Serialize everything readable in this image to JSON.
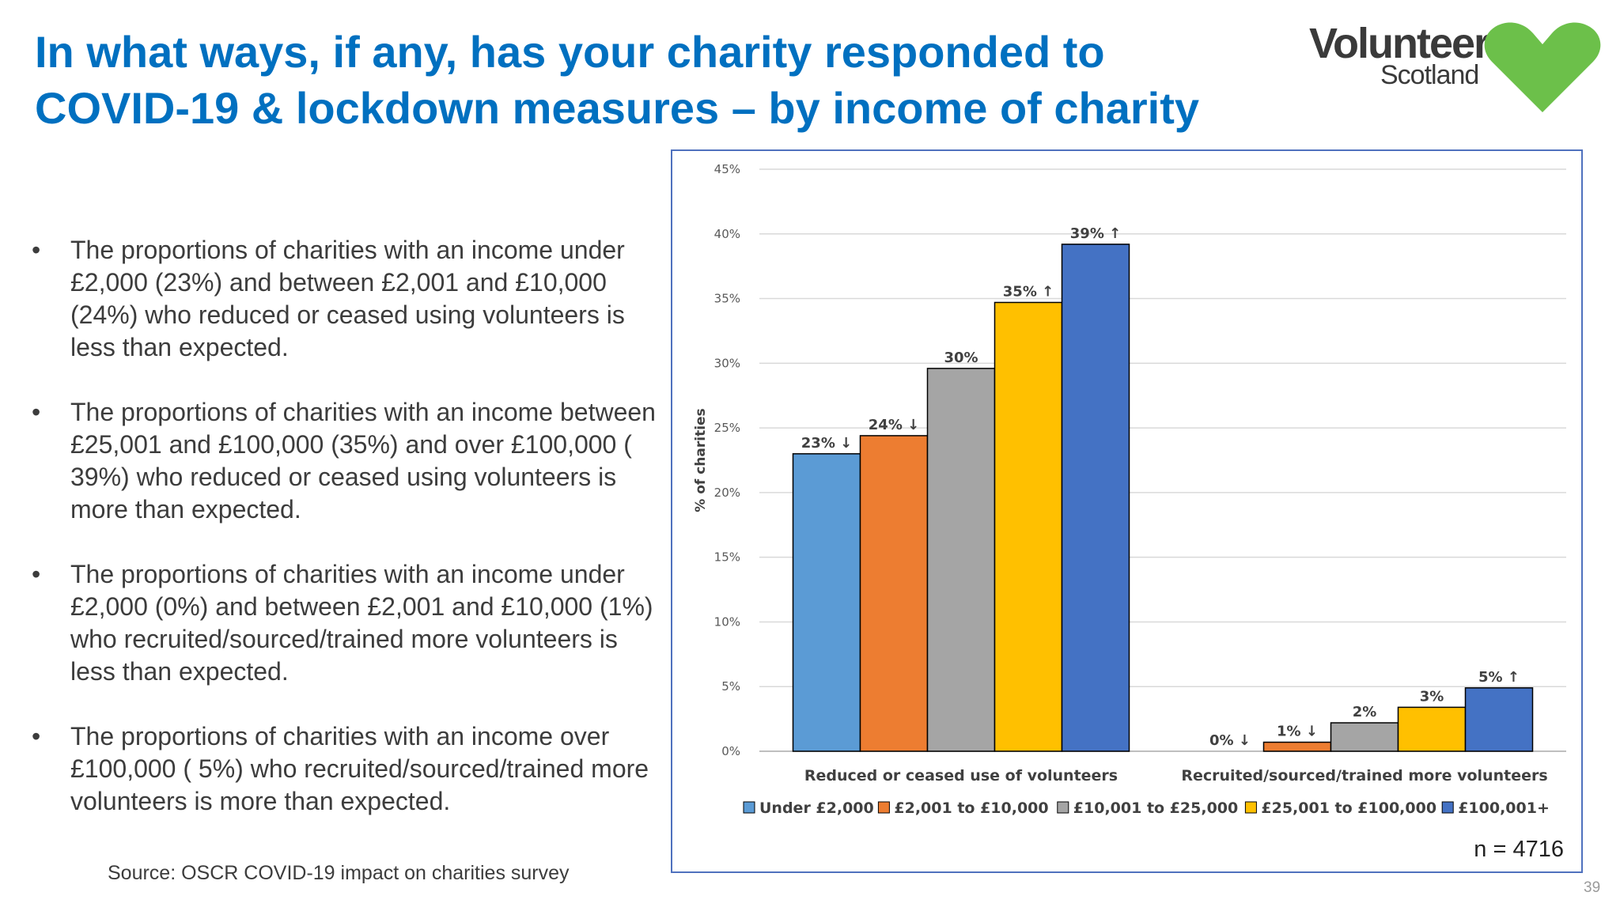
{
  "title": {
    "line1": "In what ways, if any, has your charity responded to",
    "line2": "COVID-19 & lockdown measures – by income of charity"
  },
  "logo": {
    "line1": "Volunteer",
    "line2": "Scotland",
    "icon": "heart-icon",
    "color": "#6cc04a"
  },
  "bullets": [
    {
      "marker": "•",
      "text": "The proportions of charities with an income under £2,000 (23%) and between £2,001 and £10,000 (24%) who reduced or ceased using volunteers is less than expected."
    },
    {
      "marker": "•",
      "text": "The proportions of charities with an income between £25,001 and £100,000 (35%) and over £100,000 ( 39%) who reduced or ceased using volunteers is more than expected."
    },
    {
      "marker": "•",
      "text": "The proportions of charities with an income under £2,000 (0%) and  between £2,001 and £10,000 (1%) who recruited/sourced/trained more volunteers is less than expected."
    },
    {
      "marker": "•",
      "text": "The proportions of charities with an income over £100,000 ( 5%) who recruited/sourced/trained more volunteers is more than expected."
    }
  ],
  "source": "Source: OSCR COVID-19 impact on charities survey",
  "page_number": "39",
  "chart_data": {
    "type": "bar",
    "categories": [
      "Reduced or ceased use of volunteers",
      "Recruited/sourced/trained more volunteers"
    ],
    "series": [
      {
        "name": "Under £2,000",
        "color": "#5b9bd5",
        "values": [
          23,
          0
        ],
        "labels": [
          "23% ↓",
          "0% ↓"
        ]
      },
      {
        "name": "£2,001 to £10,000",
        "color": "#ed7d31",
        "values": [
          24.4,
          0.7
        ],
        "labels": [
          "24% ↓",
          "1% ↓"
        ]
      },
      {
        "name": "£10,001 to £25,000",
        "color": "#a5a5a5",
        "values": [
          29.6,
          2.2
        ],
        "labels": [
          "30%",
          "2%"
        ]
      },
      {
        "name": "£25,001 to £100,000",
        "color": "#ffc000",
        "values": [
          34.7,
          3.4
        ],
        "labels": [
          "35% ↑",
          "3%"
        ]
      },
      {
        "name": "£100,001+",
        "color": "#4472c4",
        "values": [
          39.2,
          4.9
        ],
        "labels": [
          "39% ↑",
          "5% ↑"
        ]
      }
    ],
    "ylabel": "% of charities",
    "ylim": [
      0,
      45
    ],
    "yticks": [
      0,
      5,
      10,
      15,
      20,
      25,
      30,
      35,
      40,
      45
    ],
    "ytick_labels": [
      "0%",
      "5%",
      "10%",
      "15%",
      "20%",
      "25%",
      "30%",
      "35%",
      "40%",
      "45%"
    ],
    "grid": true,
    "legend_position": "bottom",
    "note": "n = 4716"
  }
}
